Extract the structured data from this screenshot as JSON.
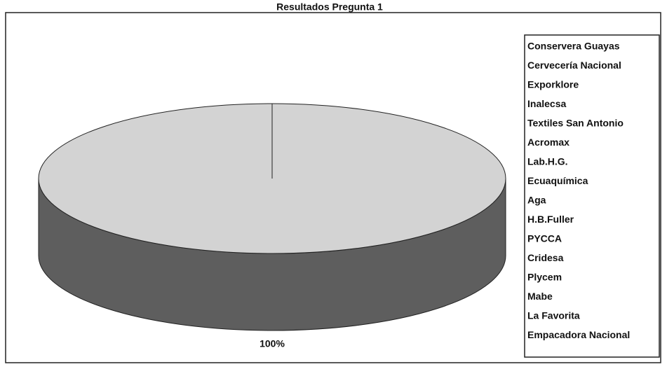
{
  "chart_data": {
    "type": "pie",
    "title": "Resultados Pregunta 1",
    "values": [
      100
    ],
    "value_labels": [
      "100%"
    ],
    "color": "#d3d3d3",
    "side_color": "#5e5e5e",
    "legend": [
      "Conservera Guayas",
      "Cervecería Nacional",
      "Exporklore",
      "Inalecsa",
      "Textiles San Antonio",
      "Acromax",
      "Lab.H.G.",
      "Ecuaquímica",
      "Aga",
      "H.B.Fuller",
      "PYCCA",
      "Cridesa",
      "Plycem",
      "Mabe",
      "La Favorita",
      "Empacadora Nacional"
    ]
  }
}
